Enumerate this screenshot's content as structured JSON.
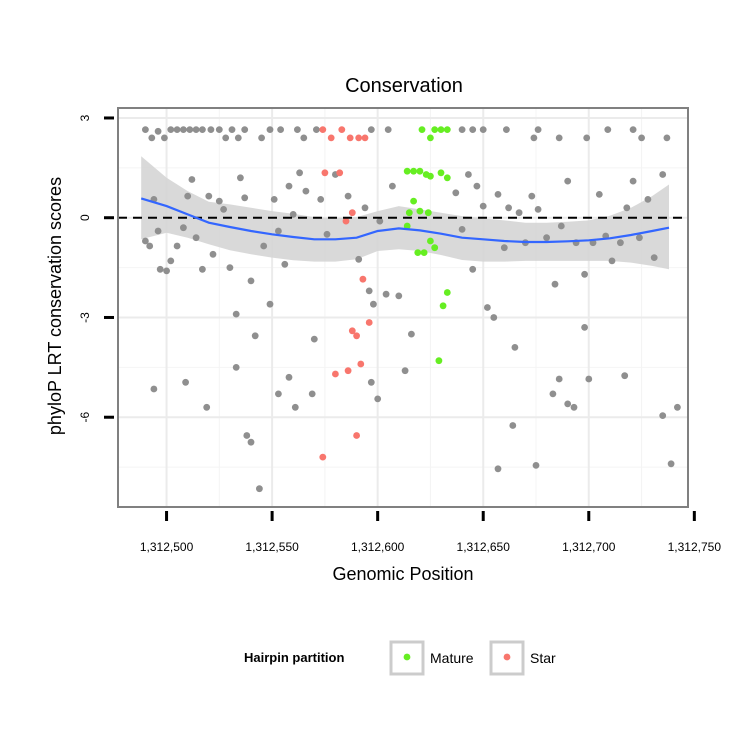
{
  "chart_data": {
    "type": "scatter",
    "title": "Conservation",
    "xlabel": "Genomic Position",
    "ylabel": "phyloP LRT conservation scores",
    "xlim": [
      1312477,
      1312747
    ],
    "ylim": [
      -8.7,
      3.3
    ],
    "x_ticks": [
      1312500,
      1312550,
      1312600,
      1312650,
      1312700,
      1312750
    ],
    "x_tick_labels": [
      "1,312,500",
      "1,312,550",
      "1,312,600",
      "1,312,650",
      "1,312,700",
      "1,312,750"
    ],
    "y_ticks": [
      3,
      0,
      -3,
      -6
    ],
    "y_tick_labels": [
      "3",
      "0",
      "-3",
      "-6"
    ],
    "grid": true,
    "reference_line": {
      "y": 0,
      "style": "dashed",
      "color": "#000000"
    },
    "colors": {
      "background_point": "#8f8f8f",
      "Mature": "#66ee22",
      "Star": "#f8766d",
      "smooth_line": "#3366ff",
      "confidence_band": "#d5d5d5"
    },
    "legend": {
      "title": "Hairpin partition",
      "position": "bottom",
      "entries": [
        {
          "label": "Mature",
          "color": "#66ee22"
        },
        {
          "label": "Star",
          "color": "#f8766d"
        }
      ]
    },
    "series": [
      {
        "name": "",
        "group": "background",
        "points": [
          [
            1312490,
            2.65
          ],
          [
            1312493,
            2.4
          ],
          [
            1312496,
            2.6
          ],
          [
            1312499,
            2.4
          ],
          [
            1312502,
            2.65
          ],
          [
            1312505,
            2.65
          ],
          [
            1312508,
            2.65
          ],
          [
            1312511,
            2.65
          ],
          [
            1312514,
            2.65
          ],
          [
            1312517,
            2.65
          ],
          [
            1312521,
            2.65
          ],
          [
            1312525,
            2.65
          ],
          [
            1312528,
            2.4
          ],
          [
            1312531,
            2.65
          ],
          [
            1312534,
            2.4
          ],
          [
            1312537,
            2.65
          ],
          [
            1312545,
            2.4
          ],
          [
            1312549,
            2.65
          ],
          [
            1312554,
            2.65
          ],
          [
            1312562,
            2.65
          ],
          [
            1312565,
            2.4
          ],
          [
            1312571,
            2.65
          ],
          [
            1312597,
            2.65
          ],
          [
            1312605,
            2.65
          ],
          [
            1312640,
            2.65
          ],
          [
            1312645,
            2.65
          ],
          [
            1312650,
            2.65
          ],
          [
            1312661,
            2.65
          ],
          [
            1312674,
            2.4
          ],
          [
            1312676,
            2.65
          ],
          [
            1312686,
            2.4
          ],
          [
            1312699,
            2.4
          ],
          [
            1312709,
            2.65
          ],
          [
            1312721,
            2.65
          ],
          [
            1312725,
            2.4
          ],
          [
            1312737,
            2.4
          ],
          [
            1312490,
            -0.7
          ],
          [
            1312492,
            -0.85
          ],
          [
            1312494,
            0.55
          ],
          [
            1312496,
            -0.4
          ],
          [
            1312497,
            -1.55
          ],
          [
            1312500,
            -1.6
          ],
          [
            1312502,
            -1.3
          ],
          [
            1312505,
            -0.85
          ],
          [
            1312508,
            -0.3
          ],
          [
            1312510,
            0.65
          ],
          [
            1312512,
            1.15
          ],
          [
            1312514,
            -0.6
          ],
          [
            1312517,
            -1.55
          ],
          [
            1312520,
            0.65
          ],
          [
            1312522,
            -1.1
          ],
          [
            1312525,
            0.5
          ],
          [
            1312527,
            0.25
          ],
          [
            1312530,
            -1.5
          ],
          [
            1312533,
            -2.9
          ],
          [
            1312535,
            1.2
          ],
          [
            1312537,
            0.6
          ],
          [
            1312540,
            -1.9
          ],
          [
            1312542,
            -3.55
          ],
          [
            1312546,
            -0.85
          ],
          [
            1312549,
            -2.6
          ],
          [
            1312551,
            0.55
          ],
          [
            1312553,
            -0.4
          ],
          [
            1312556,
            -1.4
          ],
          [
            1312558,
            0.95
          ],
          [
            1312560,
            0.1
          ],
          [
            1312563,
            1.35
          ],
          [
            1312566,
            0.8
          ],
          [
            1312570,
            -3.65
          ],
          [
            1312573,
            0.55
          ],
          [
            1312576,
            -0.5
          ],
          [
            1312580,
            1.3
          ],
          [
            1312586,
            0.65
          ],
          [
            1312591,
            -1.25
          ],
          [
            1312594,
            0.3
          ],
          [
            1312596,
            -2.2
          ],
          [
            1312598,
            -2.6
          ],
          [
            1312601,
            -0.1
          ],
          [
            1312604,
            -2.3
          ],
          [
            1312607,
            0.95
          ],
          [
            1312610,
            -2.35
          ],
          [
            1312637,
            0.75
          ],
          [
            1312640,
            -0.35
          ],
          [
            1312643,
            1.3
          ],
          [
            1312645,
            -1.55
          ],
          [
            1312647,
            0.95
          ],
          [
            1312650,
            0.35
          ],
          [
            1312652,
            -2.7
          ],
          [
            1312655,
            -3.0
          ],
          [
            1312657,
            0.7
          ],
          [
            1312660,
            -0.9
          ],
          [
            1312662,
            0.3
          ],
          [
            1312665,
            -3.9
          ],
          [
            1312667,
            0.15
          ],
          [
            1312670,
            -0.75
          ],
          [
            1312673,
            0.65
          ],
          [
            1312676,
            0.25
          ],
          [
            1312680,
            -0.6
          ],
          [
            1312684,
            -2.0
          ],
          [
            1312687,
            -0.25
          ],
          [
            1312690,
            1.1
          ],
          [
            1312694,
            -0.75
          ],
          [
            1312698,
            -1.7
          ],
          [
            1312702,
            -0.75
          ],
          [
            1312705,
            0.7
          ],
          [
            1312708,
            -0.55
          ],
          [
            1312711,
            -1.3
          ],
          [
            1312715,
            -0.75
          ],
          [
            1312718,
            0.3
          ],
          [
            1312721,
            1.1
          ],
          [
            1312724,
            -0.6
          ],
          [
            1312728,
            0.55
          ],
          [
            1312731,
            -1.2
          ],
          [
            1312735,
            1.3
          ],
          [
            1312494,
            -5.15
          ],
          [
            1312509,
            -4.95
          ],
          [
            1312519,
            -5.7
          ],
          [
            1312533,
            -4.5
          ],
          [
            1312538,
            -6.55
          ],
          [
            1312540,
            -6.75
          ],
          [
            1312544,
            -8.15
          ],
          [
            1312553,
            -5.3
          ],
          [
            1312558,
            -4.8
          ],
          [
            1312561,
            -5.7
          ],
          [
            1312569,
            -5.3
          ],
          [
            1312597,
            -4.95
          ],
          [
            1312600,
            -5.45
          ],
          [
            1312613,
            -4.6
          ],
          [
            1312616,
            -3.5
          ],
          [
            1312657,
            -7.55
          ],
          [
            1312664,
            -6.25
          ],
          [
            1312675,
            -7.45
          ],
          [
            1312683,
            -5.3
          ],
          [
            1312686,
            -4.85
          ],
          [
            1312690,
            -5.6
          ],
          [
            1312693,
            -5.7
          ],
          [
            1312698,
            -3.3
          ],
          [
            1312700,
            -4.85
          ],
          [
            1312717,
            -4.75
          ],
          [
            1312735,
            -5.95
          ],
          [
            1312739,
            -7.4
          ],
          [
            1312742,
            -5.7
          ]
        ]
      },
      {
        "name": "Mature",
        "group": "Mature",
        "points": [
          [
            1312621,
            2.65
          ],
          [
            1312625,
            2.4
          ],
          [
            1312627,
            2.65
          ],
          [
            1312630,
            2.65
          ],
          [
            1312633,
            2.65
          ],
          [
            1312614,
            1.4
          ],
          [
            1312617,
            1.4
          ],
          [
            1312620,
            1.4
          ],
          [
            1312623,
            1.3
          ],
          [
            1312625,
            1.25
          ],
          [
            1312630,
            1.35
          ],
          [
            1312633,
            1.2
          ],
          [
            1312617,
            0.5
          ],
          [
            1312615,
            0.15
          ],
          [
            1312620,
            0.2
          ],
          [
            1312624,
            0.15
          ],
          [
            1312614,
            -0.25
          ],
          [
            1312619,
            -1.05
          ],
          [
            1312622,
            -1.05
          ],
          [
            1312625,
            -0.7
          ],
          [
            1312627,
            -0.9
          ],
          [
            1312633,
            -2.25
          ],
          [
            1312631,
            -2.65
          ],
          [
            1312629,
            -4.3
          ]
        ]
      },
      {
        "name": "Star",
        "group": "Star",
        "points": [
          [
            1312574,
            2.65
          ],
          [
            1312578,
            2.4
          ],
          [
            1312583,
            2.65
          ],
          [
            1312587,
            2.4
          ],
          [
            1312591,
            2.4
          ],
          [
            1312594,
            2.4
          ],
          [
            1312575,
            1.35
          ],
          [
            1312582,
            1.35
          ],
          [
            1312588,
            0.15
          ],
          [
            1312585,
            -0.1
          ],
          [
            1312593,
            -1.85
          ],
          [
            1312596,
            -3.15
          ],
          [
            1312588,
            -3.4
          ],
          [
            1312590,
            -3.55
          ],
          [
            1312592,
            -4.4
          ],
          [
            1312586,
            -4.6
          ],
          [
            1312580,
            -4.7
          ],
          [
            1312590,
            -6.55
          ],
          [
            1312574,
            -7.2
          ]
        ]
      }
    ],
    "smooth": {
      "method": "loess",
      "x": [
        1312488,
        1312500,
        1312510,
        1312520,
        1312530,
        1312540,
        1312550,
        1312560,
        1312570,
        1312580,
        1312590,
        1312600,
        1312610,
        1312620,
        1312630,
        1312640,
        1312650,
        1312660,
        1312670,
        1312680,
        1312690,
        1312700,
        1312710,
        1312720,
        1312730,
        1312738
      ],
      "y": [
        0.58,
        0.35,
        0.1,
        -0.15,
        -0.28,
        -0.4,
        -0.5,
        -0.58,
        -0.65,
        -0.65,
        -0.6,
        -0.4,
        -0.32,
        -0.38,
        -0.48,
        -0.6,
        -0.65,
        -0.7,
        -0.73,
        -0.73,
        -0.71,
        -0.68,
        -0.62,
        -0.52,
        -0.4,
        -0.3
      ],
      "lower": [
        -0.65,
        -0.45,
        -0.6,
        -0.8,
        -0.98,
        -1.1,
        -1.2,
        -1.28,
        -1.32,
        -1.32,
        -1.25,
        -1.0,
        -0.95,
        -1.0,
        -1.12,
        -1.27,
        -1.32,
        -1.32,
        -1.3,
        -1.3,
        -1.3,
        -1.3,
        -1.3,
        -1.35,
        -1.45,
        -1.55
      ],
      "upper": [
        1.85,
        1.2,
        0.8,
        0.48,
        0.4,
        0.3,
        0.2,
        0.12,
        0.02,
        -0.02,
        0.02,
        0.2,
        0.35,
        0.25,
        0.15,
        0.05,
        -0.02,
        -0.08,
        -0.15,
        -0.15,
        -0.12,
        -0.08,
        0.06,
        0.3,
        0.65,
        1.0
      ]
    }
  }
}
